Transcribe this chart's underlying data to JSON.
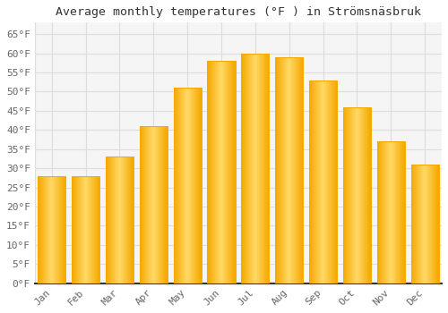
{
  "title": "Average monthly temperatures (°F ) in Strömsnäsbruk",
  "months": [
    "Jan",
    "Feb",
    "Mar",
    "Apr",
    "May",
    "Jun",
    "Jul",
    "Aug",
    "Sep",
    "Oct",
    "Nov",
    "Dec"
  ],
  "values": [
    28,
    28,
    33,
    41,
    51,
    58,
    60,
    59,
    53,
    46,
    37,
    31
  ],
  "bar_color_center": "#FFD966",
  "bar_color_edge": "#F5A800",
  "background_color": "#FFFFFF",
  "plot_bg_color": "#F5F5F5",
  "grid_color": "#DDDDDD",
  "text_color": "#666666",
  "title_color": "#333333",
  "axis_color": "#333333",
  "ylim": [
    0,
    68
  ],
  "yticks": [
    0,
    5,
    10,
    15,
    20,
    25,
    30,
    35,
    40,
    45,
    50,
    55,
    60,
    65
  ],
  "ytick_labels": [
    "0°F",
    "5°F",
    "10°F",
    "15°F",
    "20°F",
    "25°F",
    "30°F",
    "35°F",
    "40°F",
    "45°F",
    "50°F",
    "55°F",
    "60°F",
    "65°F"
  ],
  "title_fontsize": 9.5,
  "tick_fontsize": 8,
  "font_family": "monospace",
  "bar_width": 0.82
}
